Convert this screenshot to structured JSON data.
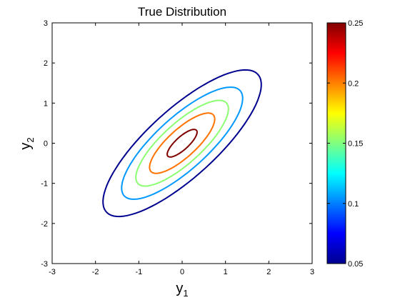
{
  "chart_data": {
    "type": "contour",
    "title": "True Distribution",
    "xlabel": {
      "base": "y",
      "sub": "1"
    },
    "ylabel": {
      "base": "y",
      "sub": "2"
    },
    "xlim": [
      -3,
      3
    ],
    "ylim": [
      -3,
      3
    ],
    "xticks": [
      -3,
      -2,
      -1,
      0,
      1,
      2,
      3
    ],
    "yticks": [
      -3,
      -2,
      -1,
      0,
      1,
      2,
      3
    ],
    "grid": false,
    "distribution": {
      "kind": "bivariate-normal",
      "mean": [
        0,
        0
      ],
      "sigma1": 1,
      "sigma2": 1,
      "rho": 0.8
    },
    "levels": [
      {
        "value": 0.05,
        "color": "#00008f"
      },
      {
        "value": 0.1,
        "color": "#0099ff"
      },
      {
        "value": 0.15,
        "color": "#8cff73"
      },
      {
        "value": 0.2,
        "color": "#ff7300"
      },
      {
        "value": 0.25,
        "color": "#800000"
      }
    ],
    "colorbar": {
      "min": 0.05,
      "max": 0.25,
      "ticks": [
        "0.05",
        "0.1",
        "0.15",
        "0.2",
        "0.25"
      ],
      "colormap": "jet"
    }
  }
}
